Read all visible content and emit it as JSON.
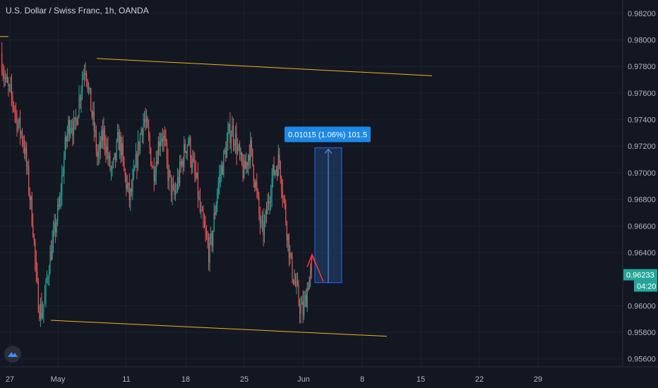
{
  "chart_title": "U.S. Dollar / Swiss Franc, 1h, OANDA",
  "colors": {
    "background": "#131722",
    "grid": "#1e222d",
    "text": "#b2b5be",
    "up": "#26a69a",
    "down": "#ef5350",
    "trendline": "#f0b323",
    "measure_fill": "#1e3a5f",
    "measure_line": "#2962ff",
    "measure_label_bg": "#1e88e5",
    "current_price_bg": "#26a69a",
    "arrow": "#f23645"
  },
  "price_axis": {
    "ticks": [
      "0.98200",
      "0.98000",
      "0.97800",
      "0.97600",
      "0.97400",
      "0.97200",
      "0.97000",
      "0.96800",
      "0.96600",
      "0.96400",
      "0.96000",
      "0.95800",
      "0.95600"
    ],
    "current_price": "0.96233",
    "countdown": "04:20"
  },
  "time_axis": {
    "ticks": [
      "27",
      "May",
      "11",
      "18",
      "25",
      "Jun",
      "8",
      "15",
      "22",
      "29"
    ]
  },
  "measure_label": "0.01015 (1.06%) 101.5",
  "chart_data": {
    "type": "candlestick",
    "title": "U.S. Dollar / Swiss Franc, 1h, OANDA",
    "ylim": [
      0.9554,
      0.983
    ],
    "y_ticks": [
      0.982,
      0.98,
      0.978,
      0.976,
      0.974,
      0.972,
      0.97,
      0.968,
      0.966,
      0.964,
      0.96,
      0.958,
      0.956
    ],
    "x_tick_labels": [
      "27",
      "May",
      "11",
      "18",
      "25",
      "Jun",
      "8",
      "15",
      "22",
      "29"
    ],
    "price_path_closes": [
      0.979,
      0.9775,
      0.9765,
      0.976,
      0.9755,
      0.9745,
      0.9735,
      0.973,
      0.972,
      0.97,
      0.968,
      0.966,
      0.962,
      0.96,
      0.9595,
      0.9605,
      0.9625,
      0.964,
      0.965,
      0.9665,
      0.9675,
      0.97,
      0.972,
      0.9735,
      0.974,
      0.973,
      0.9745,
      0.976,
      0.9775,
      0.9782,
      0.976,
      0.9745,
      0.973,
      0.971,
      0.972,
      0.973,
      0.972,
      0.9705,
      0.97,
      0.971,
      0.9725,
      0.972,
      0.97,
      0.969,
      0.968,
      0.969,
      0.9705,
      0.972,
      0.9735,
      0.974,
      0.973,
      0.9715,
      0.97,
      0.971,
      0.9725,
      0.973,
      0.972,
      0.97,
      0.969,
      0.968,
      0.969,
      0.97,
      0.971,
      0.972,
      0.9725,
      0.971,
      0.97,
      0.969,
      0.967,
      0.966,
      0.965,
      0.964,
      0.965,
      0.967,
      0.969,
      0.97,
      0.971,
      0.972,
      0.973,
      0.9732,
      0.9725,
      0.9715,
      0.9705,
      0.97,
      0.971,
      0.972,
      0.9705,
      0.969,
      0.967,
      0.9655,
      0.966,
      0.9675,
      0.969,
      0.97,
      0.9705,
      0.971,
      0.969,
      0.967,
      0.965,
      0.963,
      0.962,
      0.961,
      0.96,
      0.9595,
      0.9605,
      0.962,
      0.9623
    ],
    "annotations": {
      "upper_trendline": {
        "from": {
          "x_index": 12,
          "price": 0.9786
        },
        "to": {
          "x_index": 60,
          "price": 0.9773
        }
      },
      "lower_trendline": {
        "from": {
          "x_index": 6,
          "price": 0.9589
        },
        "to": {
          "x_index": 54,
          "price": 0.9577
        }
      },
      "measure_range": {
        "low": 0.96173,
        "high": 0.97188,
        "diff": "0.01015",
        "pct": "1.06%",
        "points": "101.5"
      }
    }
  }
}
